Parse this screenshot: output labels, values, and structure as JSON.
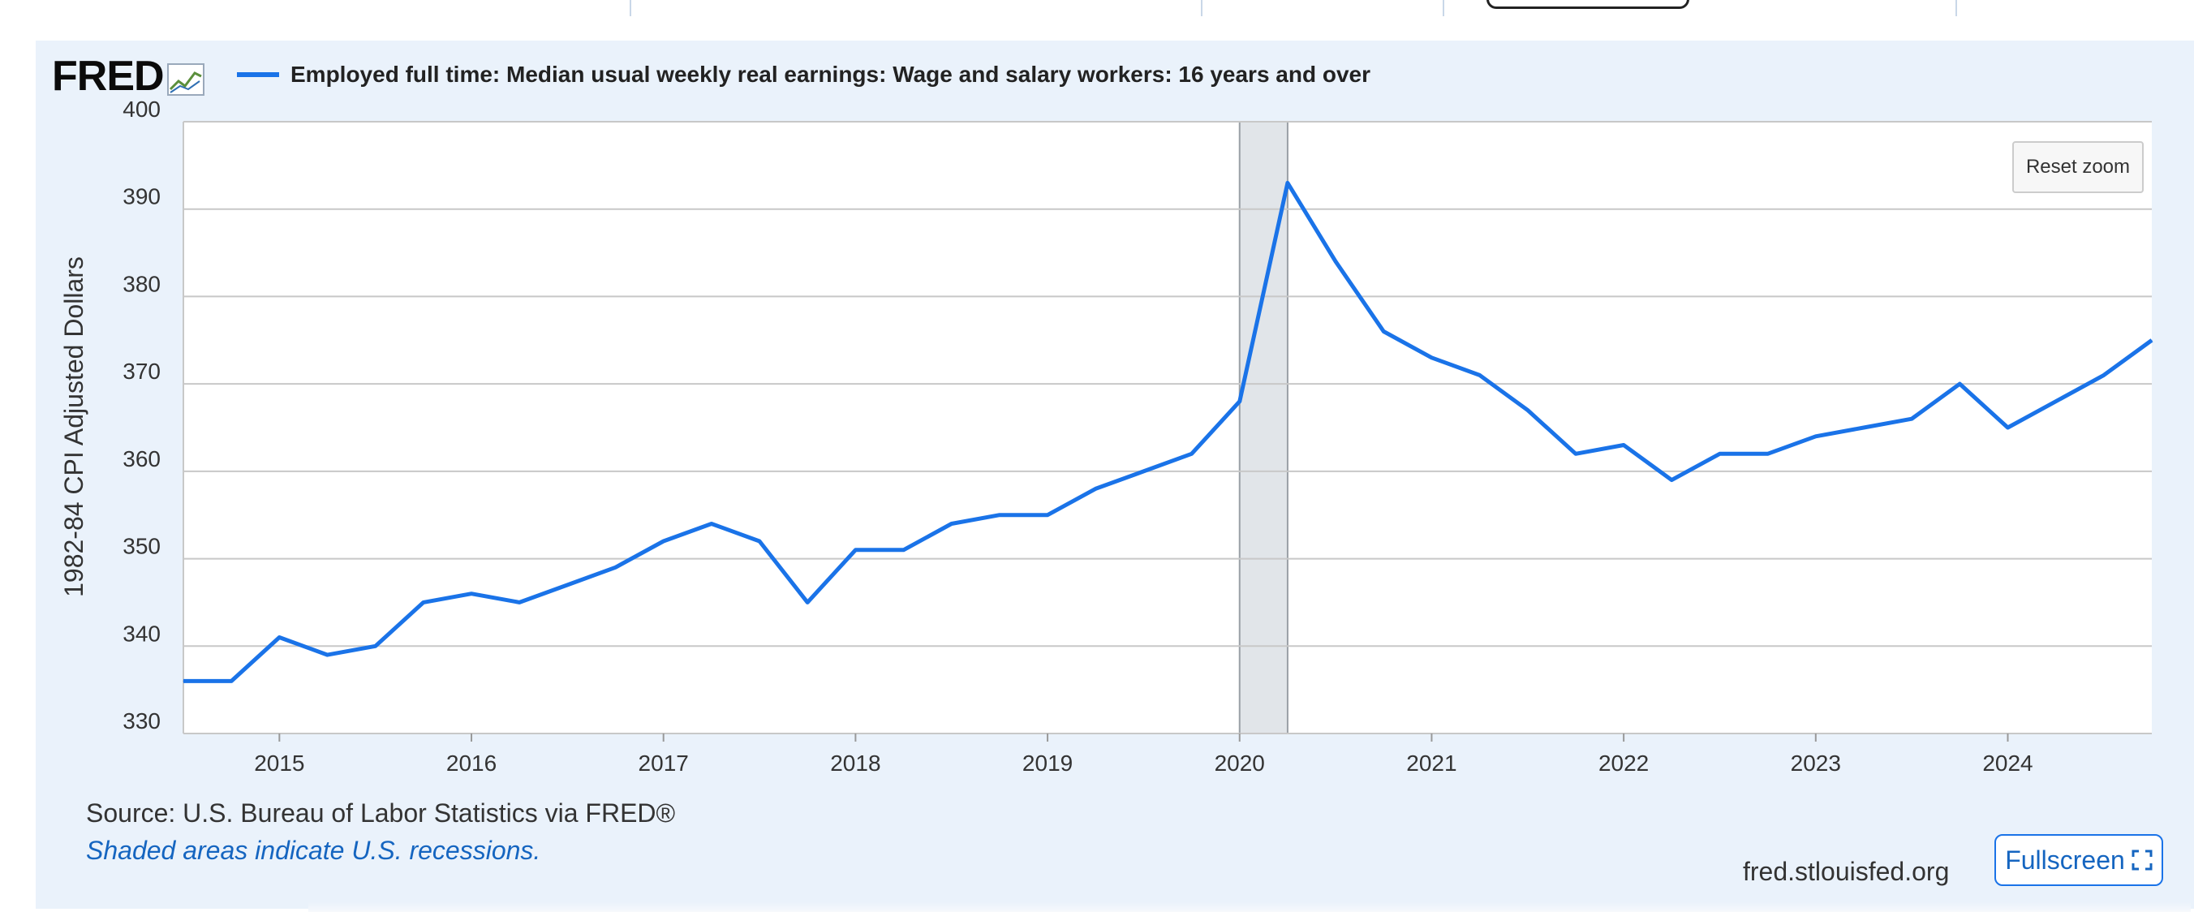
{
  "logo": {
    "text": "FRED"
  },
  "legend": {
    "series_label": "Employed full time: Median usual weekly real earnings: Wage and salary workers: 16 years and over"
  },
  "buttons": {
    "reset_zoom": "Reset zoom",
    "fullscreen": "Fullscreen"
  },
  "footer": {
    "source": "Source: U.S. Bureau of Labor Statistics via FRED®",
    "recession_note": "Shaded areas indicate U.S. recessions.",
    "site": "fred.stlouisfed.org"
  },
  "colors": {
    "series": "#1a73e8",
    "card_bg": "#eaf2fb",
    "plot_bg": "#ffffff",
    "grid": "#c8c8c8",
    "recession": "#e1e5e9"
  },
  "icons": {
    "logo_chart": "chart-line-icon",
    "fullscreen": "expand-icon"
  },
  "chart_data": {
    "type": "line",
    "title": "",
    "xlabel": "",
    "ylabel": "1982-84 CPI Adjusted Dollars",
    "ylim": [
      330,
      400
    ],
    "yticks": [
      330,
      340,
      350,
      360,
      370,
      380,
      390,
      400
    ],
    "xlim": [
      2014.5,
      2024.75
    ],
    "xticks": [
      2015,
      2016,
      2017,
      2018,
      2019,
      2020,
      2021,
      2022,
      2023,
      2024
    ],
    "grid": true,
    "recessions": [
      {
        "start": 2020.0,
        "end": 2020.25
      }
    ],
    "series": [
      {
        "name": "Employed full time: Median usual weekly real earnings: Wage and salary workers: 16 years and over",
        "x": [
          2014.5,
          2014.75,
          2015.0,
          2015.25,
          2015.5,
          2015.75,
          2016.0,
          2016.25,
          2016.5,
          2016.75,
          2017.0,
          2017.25,
          2017.5,
          2017.75,
          2018.0,
          2018.25,
          2018.5,
          2018.75,
          2019.0,
          2019.25,
          2019.5,
          2019.75,
          2020.0,
          2020.25,
          2020.5,
          2020.75,
          2021.0,
          2021.25,
          2021.5,
          2021.75,
          2022.0,
          2022.25,
          2022.5,
          2022.75,
          2023.0,
          2023.25,
          2023.5,
          2023.75,
          2024.0,
          2024.25,
          2024.5,
          2024.75
        ],
        "values": [
          336,
          336,
          341,
          339,
          340,
          345,
          346,
          345,
          347,
          349,
          352,
          354,
          352,
          345,
          351,
          351,
          354,
          355,
          355,
          358,
          360,
          362,
          368,
          393,
          384,
          376,
          373,
          371,
          367,
          362,
          363,
          359,
          362,
          362,
          364,
          365,
          366,
          370,
          365,
          368,
          371,
          375
        ]
      }
    ]
  }
}
